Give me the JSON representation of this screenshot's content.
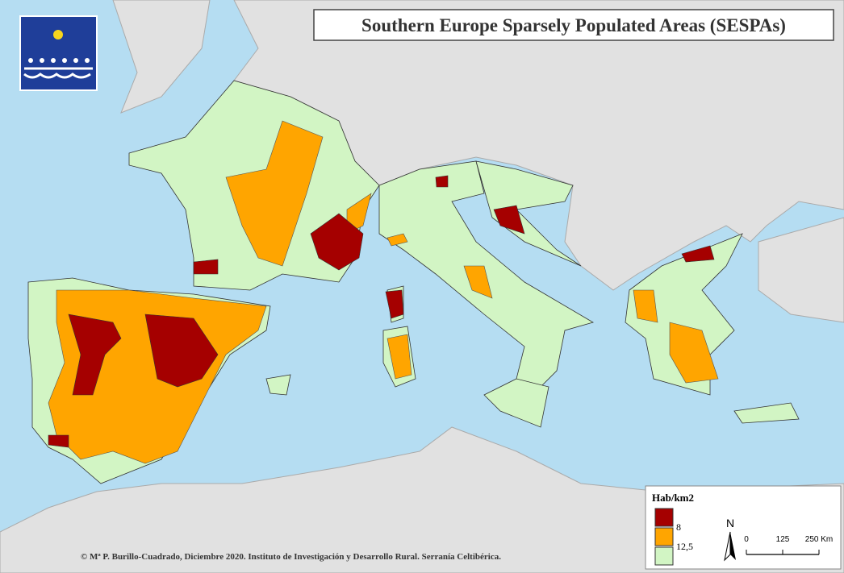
{
  "title": "Southern Europe Sparsely Populated Areas (SESPAs)",
  "credit": "© Mª P. Burillo-Cuadrado, Diciembre 2020. Instituto de Investigación y Desarrollo Rural. Serranía Celtibérica.",
  "legend": {
    "title": "Hab/km2",
    "items": [
      {
        "label": "8",
        "color": "#a50000"
      },
      {
        "label": "12,5",
        "color": "#ffa500"
      },
      {
        "label": "",
        "color": "#d2f5c4"
      }
    ]
  },
  "north": "N",
  "scale": {
    "ticks": [
      0,
      125,
      {
        "value": 250,
        "label": "250 Km"
      }
    ]
  }
}
